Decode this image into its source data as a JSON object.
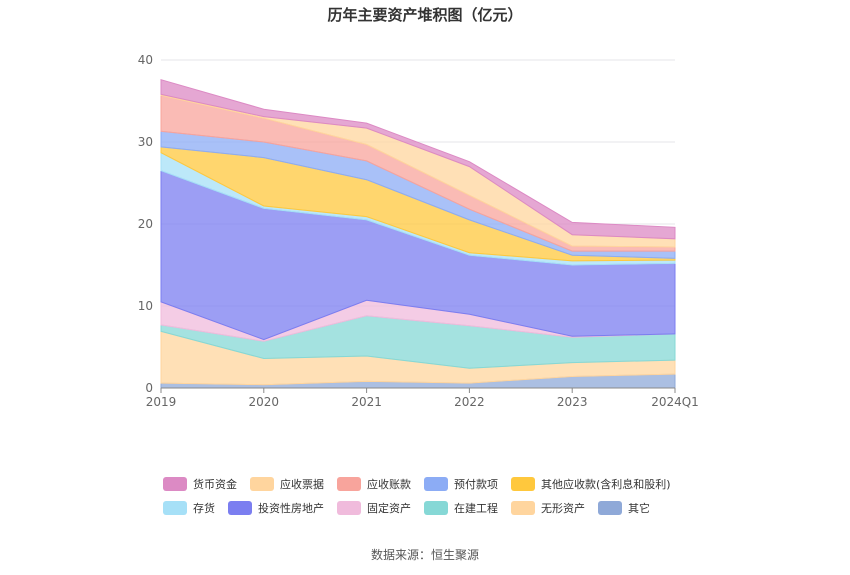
{
  "chart_data": {
    "type": "area",
    "stacked": true,
    "title": "历年主要资产堆积图（亿元）",
    "source": "数据来源：恒生聚源",
    "categories": [
      "2019",
      "2020",
      "2021",
      "2022",
      "2023",
      "2024Q1"
    ],
    "ylim": [
      0,
      40
    ],
    "yticks": [
      "0",
      "10",
      "20",
      "30",
      "40"
    ],
    "series": [
      {
        "name": "其它",
        "color": "#8fa9d8",
        "values": [
          0.6,
          0.4,
          0.8,
          0.6,
          1.4,
          1.7
        ]
      },
      {
        "name": "无形资产",
        "color": "#ffd59e",
        "values": [
          6.3,
          3.2,
          3.1,
          1.8,
          1.7,
          1.7
        ]
      },
      {
        "name": "在建工程",
        "color": "#86d8d6",
        "values": [
          0.8,
          2.1,
          4.9,
          5.2,
          3.1,
          3.2
        ]
      },
      {
        "name": "固定资产",
        "color": "#f0bbdc",
        "values": [
          2.8,
          0.2,
          1.9,
          1.4,
          0.1,
          0.0
        ]
      },
      {
        "name": "投资性房地产",
        "color": "#7b7ef0",
        "values": [
          16.0,
          16.0,
          9.8,
          7.2,
          8.7,
          8.6
        ]
      },
      {
        "name": "存货",
        "color": "#a6e0f7",
        "values": [
          2.2,
          0.3,
          0.4,
          0.3,
          0.5,
          0.4
        ]
      },
      {
        "name": "其他应收款(含利息和股利)",
        "color": "#ffc83d",
        "values": [
          0.7,
          5.9,
          4.5,
          4.0,
          0.7,
          0.2
        ]
      },
      {
        "name": "预付款项",
        "color": "#8cacf5",
        "values": [
          1.9,
          1.9,
          2.3,
          1.3,
          0.5,
          0.9
        ]
      },
      {
        "name": "应收账款",
        "color": "#f8a49c",
        "values": [
          4.4,
          2.9,
          2.0,
          1.7,
          0.6,
          0.5
        ]
      },
      {
        "name": "应收票据",
        "color": "#ffd59e",
        "values": [
          0.1,
          0.2,
          2.0,
          3.5,
          1.4,
          1.0
        ]
      },
      {
        "name": "货币资金",
        "color": "#dc8ac4",
        "values": [
          1.8,
          0.9,
          0.6,
          0.6,
          1.5,
          1.4
        ]
      }
    ],
    "legend": [
      [
        "货币资金",
        "应收票据",
        "应收账款",
        "预付款项",
        "其他应收款(含利息和股利)"
      ],
      [
        "存货",
        "投资性房地产",
        "固定资产",
        "在建工程",
        "无形资产",
        "其它"
      ]
    ]
  }
}
